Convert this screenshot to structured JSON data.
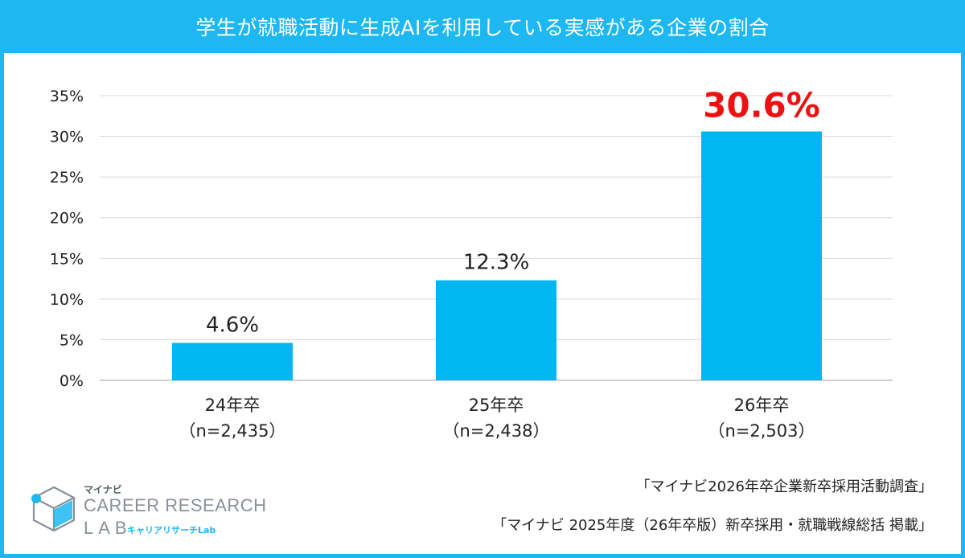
{
  "header": {
    "title": "学生が就職活動に生成AIを利用している実感がある企業の割合"
  },
  "colors": {
    "accent": "#1DB8F2",
    "bar": "#00B7F1",
    "highlight": "#EE1111",
    "grid": "#D9D9D9",
    "axis": "#BFBFBF"
  },
  "chart_data": {
    "type": "bar",
    "title": "学生が就職活動に生成AIを利用している実感がある企業の割合",
    "categories": [
      "24年卒",
      "25年卒",
      "26年卒"
    ],
    "sample_sizes": [
      "（n=2,435）",
      "（n=2,438）",
      "（n=2,503）"
    ],
    "values": [
      4.6,
      12.3,
      30.6
    ],
    "value_labels": [
      "4.6%",
      "12.3%",
      "30.6%"
    ],
    "highlight_index": 2,
    "ylim": [
      0,
      35
    ],
    "yticks": [
      0,
      5,
      10,
      15,
      20,
      25,
      30,
      35
    ],
    "ytick_labels": [
      "0%",
      "5%",
      "10%",
      "15%",
      "20%",
      "25%",
      "30%",
      "35%"
    ],
    "xlabel": "",
    "ylabel": "",
    "grid": true
  },
  "sources": {
    "line1": "「マイナビ2026年卒企業新卒採用活動調査」",
    "line2": "「マイナビ 2025年度（26年卒版）新卒採用・就職戦線総括 掲載」"
  },
  "logo": {
    "brand": "マイナビ",
    "line1": "CAREER RESEARCH",
    "line2": "LAB",
    "sub": "キャリアリサーチLab"
  }
}
